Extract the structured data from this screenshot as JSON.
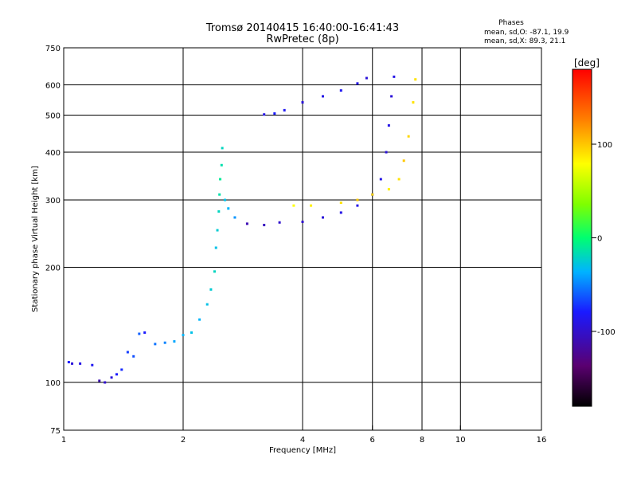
{
  "header": {
    "title_line1": "Tromsø 20140415 16:40:00-16:41:43",
    "title_line2": "RwPretec (8p)"
  },
  "phases_box": {
    "title": "Phases",
    "line_o": "mean, sd,O: -87.1, 19.9",
    "line_x": "mean, sd,X:  89.3, 21.1"
  },
  "colorbar": {
    "unit_label": "[deg]",
    "range": [
      -180,
      180
    ],
    "ticks": [
      {
        "value": 100,
        "label": "100"
      },
      {
        "value": 0,
        "label": "0"
      },
      {
        "value": -100,
        "label": "-100"
      }
    ]
  },
  "chart_data": {
    "type": "scatter",
    "xlabel": "Frequency [MHz]",
    "ylabel": "Stationary phase Virtual Height [km]",
    "xscale": "log",
    "yscale": "log",
    "xlim": [
      1,
      16
    ],
    "ylim": [
      75,
      750
    ],
    "grid": true,
    "xticks": [
      {
        "value": 1,
        "label": "1"
      },
      {
        "value": 2,
        "label": "2"
      },
      {
        "value": 4,
        "label": "4"
      },
      {
        "value": 6,
        "label": "6"
      },
      {
        "value": 8,
        "label": "8"
      },
      {
        "value": 10,
        "label": "10"
      },
      {
        "value": 16,
        "label": "16"
      }
    ],
    "xgrid": [
      2,
      4,
      6,
      8,
      10
    ],
    "yticks": [
      {
        "value": 75,
        "label": "75"
      },
      {
        "value": 100,
        "label": "100"
      },
      {
        "value": 200,
        "label": "200"
      },
      {
        "value": 300,
        "label": "300"
      },
      {
        "value": 400,
        "label": "400"
      },
      {
        "value": 500,
        "label": "500"
      },
      {
        "value": 600,
        "label": "600"
      },
      {
        "value": 750,
        "label": "750"
      }
    ],
    "ygrid": [
      100,
      200,
      300,
      400,
      500,
      600
    ],
    "color_by": "phase [deg]",
    "series": [
      {
        "trace": "low_layer",
        "points": [
          [
            1.03,
            113,
            -80
          ],
          [
            1.05,
            112,
            -95
          ],
          [
            1.1,
            112,
            -90
          ],
          [
            1.18,
            111,
            -85
          ],
          [
            1.23,
            101,
            -110
          ],
          [
            1.27,
            100,
            -100
          ],
          [
            1.32,
            103,
            -95
          ],
          [
            1.36,
            105,
            -80
          ],
          [
            1.4,
            108,
            -75
          ],
          [
            1.45,
            120,
            -70
          ],
          [
            1.5,
            117,
            -65
          ],
          [
            1.55,
            134,
            -60
          ],
          [
            1.6,
            135,
            -80
          ],
          [
            1.7,
            126,
            -55
          ],
          [
            1.8,
            127,
            -50
          ],
          [
            1.9,
            128,
            -40
          ],
          [
            2.0,
            133,
            -35
          ],
          [
            2.1,
            135,
            -30
          ],
          [
            2.2,
            146,
            -35
          ],
          [
            2.3,
            160,
            -30
          ],
          [
            2.35,
            175,
            -25
          ],
          [
            2.4,
            195,
            -20
          ]
        ]
      },
      {
        "trace": "cusp",
        "points": [
          [
            2.42,
            225,
            -30
          ],
          [
            2.44,
            250,
            -25
          ],
          [
            2.46,
            280,
            -20
          ],
          [
            2.47,
            310,
            -15
          ],
          [
            2.48,
            340,
            -10
          ],
          [
            2.5,
            370,
            -15
          ],
          [
            2.51,
            410,
            -20
          ],
          [
            2.55,
            300,
            -30
          ],
          [
            2.6,
            285,
            -35
          ],
          [
            2.7,
            270,
            -45
          ]
        ]
      },
      {
        "trace": "o_trace",
        "points": [
          [
            2.9,
            260,
            -110
          ],
          [
            3.2,
            258,
            -105
          ],
          [
            3.5,
            262,
            -100
          ],
          [
            4.0,
            263,
            -100
          ],
          [
            4.5,
            270,
            -95
          ],
          [
            5.0,
            278,
            -90
          ],
          [
            5.5,
            290,
            -90
          ],
          [
            6.0,
            310,
            -85
          ],
          [
            6.3,
            340,
            -90
          ],
          [
            6.5,
            400,
            -95
          ],
          [
            6.6,
            470,
            -90
          ],
          [
            6.7,
            560,
            -95
          ],
          [
            6.8,
            630,
            -90
          ]
        ]
      },
      {
        "trace": "x_trace",
        "points": [
          [
            3.8,
            290,
            80
          ],
          [
            4.2,
            290,
            85
          ],
          [
            5.0,
            295,
            90
          ],
          [
            5.5,
            300,
            100
          ],
          [
            6.0,
            310,
            95
          ],
          [
            6.6,
            320,
            85
          ],
          [
            7.0,
            340,
            90
          ],
          [
            7.2,
            380,
            100
          ],
          [
            7.4,
            440,
            95
          ],
          [
            7.6,
            540,
            90
          ],
          [
            7.7,
            620,
            90
          ]
        ]
      },
      {
        "trace": "f2_upper",
        "points": [
          [
            3.2,
            502,
            -90
          ],
          [
            3.4,
            505,
            -80
          ],
          [
            3.6,
            515,
            -85
          ],
          [
            4.0,
            540,
            -95
          ],
          [
            4.5,
            560,
            -90
          ],
          [
            5.0,
            580,
            -85
          ],
          [
            5.5,
            605,
            -90
          ],
          [
            5.8,
            625,
            -95
          ]
        ]
      }
    ]
  }
}
